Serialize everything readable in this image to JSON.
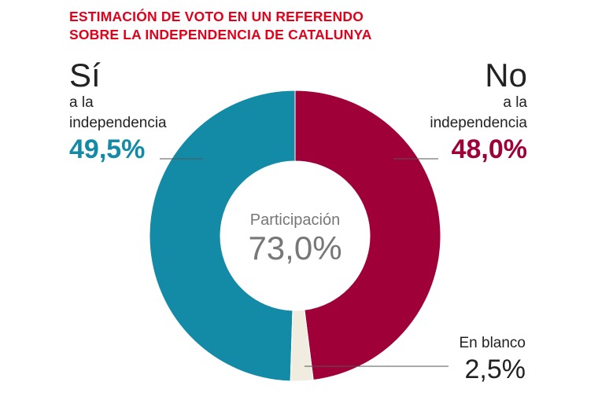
{
  "header": {
    "title_line1": "ESTIMACIÓN DE VOTO EN UN REFERENDO",
    "title_line2": "SOBRE LA INDEPENDENCIA DE CATALUNYA"
  },
  "labels": {
    "si_title": "Sí",
    "si_sub1": "a la",
    "si_sub2": "independencia",
    "si_pct": "49,5%",
    "no_title": "No",
    "no_sub1": "a la",
    "no_sub2": "independencia",
    "no_pct": "48,0%",
    "blank_title": "En blanco",
    "blank_pct": "2,5%",
    "center_label": "Participación",
    "center_value": "73,0%"
  },
  "colors": {
    "si": "#138aa6",
    "no": "#a00038",
    "blank": "#f0ece0",
    "title": "#e2001a",
    "center_text": "#777777"
  },
  "chart_data": {
    "type": "pie",
    "title": "ESTIMACIÓN DE VOTO EN UN REFERENDO SOBRE LA INDEPENDENCIA DE CATALUNYA",
    "categories": [
      "Sí a la independencia",
      "No a la independencia",
      "En blanco"
    ],
    "values": [
      49.5,
      48.0,
      2.5
    ],
    "unit": "%",
    "donut": true,
    "center_annotation": {
      "label": "Participación",
      "value": 73.0
    }
  }
}
